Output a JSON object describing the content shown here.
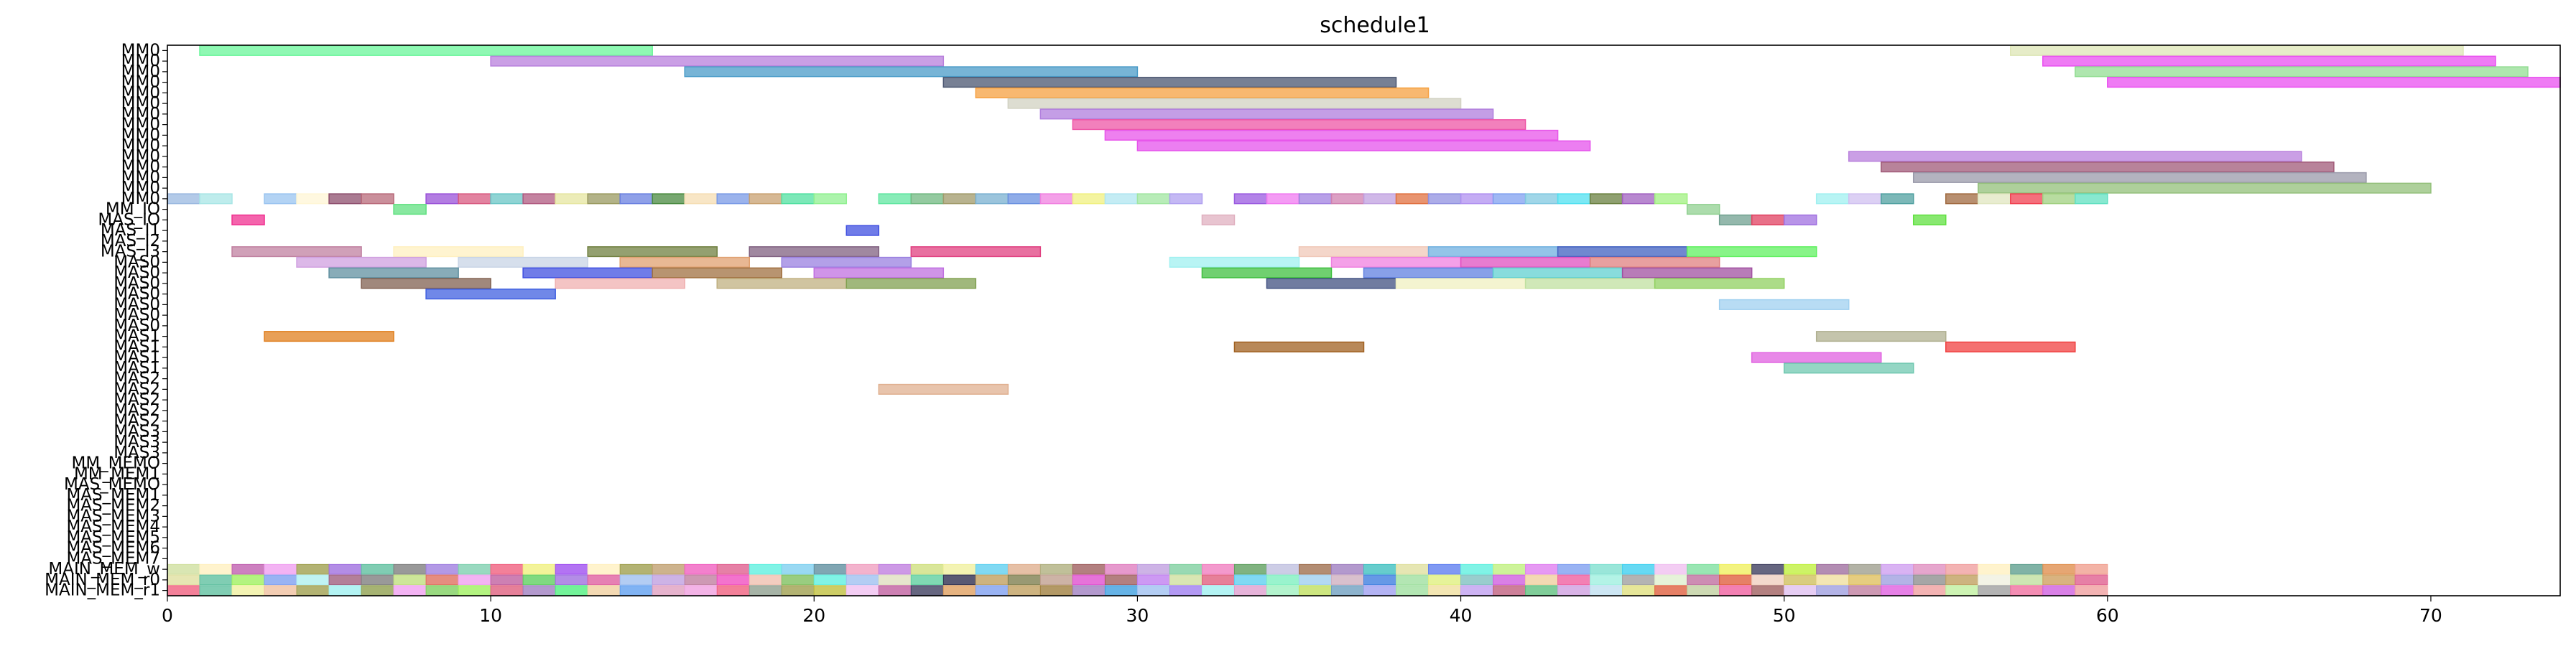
{
  "chart_data": {
    "type": "gantt",
    "title": "schedule1",
    "xlabel": "",
    "ylabel": "",
    "xlim": [
      0,
      74
    ],
    "x_ticks": [
      0,
      10,
      20,
      30,
      40,
      50,
      60,
      70
    ],
    "grid": false,
    "rows": [
      "MM0",
      "MM0",
      "MM0",
      "MM0",
      "MM0",
      "MM0",
      "MM0",
      "MM0",
      "MM0",
      "MM0",
      "MM0",
      "MM0",
      "MM0",
      "MM0",
      "MM0",
      "MM_IO",
      "MAS_IO",
      "MAS_I1",
      "MAS_I2",
      "MAS_I3",
      "MAS0",
      "MAS0",
      "MAS0",
      "MAS0",
      "MAS0",
      "MAS0",
      "MAS0",
      "MAS1",
      "MAS1",
      "MAS1",
      "MAS1",
      "MAS2",
      "MAS2",
      "MAS2",
      "MAS2",
      "MAS2",
      "MAS3",
      "MAS3",
      "MAS3",
      "MM_MEMO",
      "MM_MEM1",
      "MAS_MEMO",
      "MAS_MEM1",
      "MAS_MEM2",
      "MAS_MEM3",
      "MAS_MEM4",
      "MAS_MEM5",
      "MAS_MEM6",
      "MAS_MEM7",
      "MAIN_MEM_w",
      "MAIN_MEM_r0",
      "MAIN_MEM_r1"
    ],
    "bars": [
      {
        "row": 0,
        "start": 1,
        "end": 15,
        "color": "#6af59a"
      },
      {
        "row": 0,
        "start": 57,
        "end": 71,
        "color": "#dde6b5"
      },
      {
        "row": 1,
        "start": 10,
        "end": 24,
        "color": "#b87fdc"
      },
      {
        "row": 1,
        "start": 58,
        "end": 72,
        "color": "#e94ff0"
      },
      {
        "row": 2,
        "start": 16,
        "end": 30,
        "color": "#4a9bc8"
      },
      {
        "row": 2,
        "start": 59,
        "end": 73,
        "color": "#93dd93"
      },
      {
        "row": 3,
        "start": 24,
        "end": 38,
        "color": "#4a5570"
      },
      {
        "row": 3,
        "start": 60,
        "end": 74,
        "color": "#e94ff0"
      },
      {
        "row": 4,
        "start": 25,
        "end": 39,
        "color": "#f5a040"
      },
      {
        "row": 5,
        "start": 26,
        "end": 40,
        "color": "#d2d2c2"
      },
      {
        "row": 6,
        "start": 27,
        "end": 41,
        "color": "#b07edd"
      },
      {
        "row": 7,
        "start": 28,
        "end": 42,
        "color": "#ee55a6"
      },
      {
        "row": 8,
        "start": 29,
        "end": 43,
        "color": "#e856ea"
      },
      {
        "row": 9,
        "start": 30,
        "end": 44,
        "color": "#e653ec"
      },
      {
        "row": 10,
        "start": 52,
        "end": 66,
        "color": "#b87fdc"
      },
      {
        "row": 11,
        "start": 53,
        "end": 67,
        "color": "#a05a78"
      },
      {
        "row": 12,
        "start": 54,
        "end": 68,
        "color": "#9a9aaa"
      },
      {
        "row": 13,
        "start": 56,
        "end": 70,
        "color": "#93c07a"
      },
      {
        "row": 14,
        "start": 0,
        "end": 1,
        "color": "#9ab8e0"
      },
      {
        "row": 14,
        "start": 1,
        "end": 2,
        "color": "#a8e6e6"
      },
      {
        "row": 14,
        "start": 3,
        "end": 4,
        "color": "#9ac4f0"
      },
      {
        "row": 14,
        "start": 4,
        "end": 5,
        "color": "#fff6d5"
      },
      {
        "row": 14,
        "start": 5,
        "end": 6,
        "color": "#8e4f6e"
      },
      {
        "row": 14,
        "start": 6,
        "end": 7,
        "color": "#b86a7a"
      },
      {
        "row": 14,
        "start": 8,
        "end": 9,
        "color": "#9a52d8"
      },
      {
        "row": 14,
        "start": 9,
        "end": 10,
        "color": "#d85a80"
      },
      {
        "row": 14,
        "start": 10,
        "end": 11,
        "color": "#6ac6c6"
      },
      {
        "row": 14,
        "start": 11,
        "end": 12,
        "color": "#b05a80"
      },
      {
        "row": 14,
        "start": 12,
        "end": 13,
        "color": "#e6e6a0"
      },
      {
        "row": 14,
        "start": 13,
        "end": 14,
        "color": "#9a9a60"
      },
      {
        "row": 14,
        "start": 14,
        "end": 15,
        "color": "#6a80e0"
      },
      {
        "row": 14,
        "start": 15,
        "end": 16,
        "color": "#4a8a40"
      },
      {
        "row": 14,
        "start": 16,
        "end": 17,
        "color": "#f5deb3"
      },
      {
        "row": 14,
        "start": 17,
        "end": 18,
        "color": "#7a9ae6"
      },
      {
        "row": 14,
        "start": 18,
        "end": 19,
        "color": "#c8a070"
      },
      {
        "row": 14,
        "start": 19,
        "end": 20,
        "color": "#50e0a0"
      },
      {
        "row": 14,
        "start": 20,
        "end": 21,
        "color": "#90f090"
      },
      {
        "row": 14,
        "start": 22,
        "end": 23,
        "color": "#60e6a0"
      },
      {
        "row": 14,
        "start": 23,
        "end": 24,
        "color": "#70b880"
      },
      {
        "row": 14,
        "start": 24,
        "end": 25,
        "color": "#a09a6a"
      },
      {
        "row": 14,
        "start": 25,
        "end": 26,
        "color": "#7ab0d0"
      },
      {
        "row": 14,
        "start": 26,
        "end": 27,
        "color": "#6a90e0"
      },
      {
        "row": 14,
        "start": 27,
        "end": 28,
        "color": "#f080e0"
      },
      {
        "row": 14,
        "start": 28,
        "end": 29,
        "color": "#f0f080"
      },
      {
        "row": 14,
        "start": 29,
        "end": 30,
        "color": "#b0e6f0"
      },
      {
        "row": 14,
        "start": 30,
        "end": 31,
        "color": "#a0e6a0"
      },
      {
        "row": 14,
        "start": 31,
        "end": 32,
        "color": "#b0a0f0"
      },
      {
        "row": 14,
        "start": 33,
        "end": 34,
        "color": "#9a5ae0"
      },
      {
        "row": 14,
        "start": 34,
        "end": 35,
        "color": "#f07af0"
      },
      {
        "row": 14,
        "start": 35,
        "end": 36,
        "color": "#a080e0"
      },
      {
        "row": 14,
        "start": 36,
        "end": 37,
        "color": "#d080b0"
      },
      {
        "row": 14,
        "start": 37,
        "end": 38,
        "color": "#c0a0e0"
      },
      {
        "row": 14,
        "start": 38,
        "end": 39,
        "color": "#e07040"
      },
      {
        "row": 14,
        "start": 39,
        "end": 40,
        "color": "#9090e0"
      },
      {
        "row": 14,
        "start": 40,
        "end": 41,
        "color": "#b090f0"
      },
      {
        "row": 14,
        "start": 41,
        "end": 42,
        "color": "#80a0f0"
      },
      {
        "row": 14,
        "start": 42,
        "end": 43,
        "color": "#80c8e0"
      },
      {
        "row": 14,
        "start": 43,
        "end": 44,
        "color": "#50e0f0"
      },
      {
        "row": 14,
        "start": 44,
        "end": 45,
        "color": "#6a8040"
      },
      {
        "row": 14,
        "start": 45,
        "end": 46,
        "color": "#a060c0"
      },
      {
        "row": 14,
        "start": 46,
        "end": 47,
        "color": "#a0f080"
      },
      {
        "row": 14,
        "start": 51,
        "end": 52,
        "color": "#a0f0f0"
      },
      {
        "row": 14,
        "start": 52,
        "end": 53,
        "color": "#d0c0f0"
      },
      {
        "row": 14,
        "start": 53,
        "end": 54,
        "color": "#50a0a0"
      },
      {
        "row": 14,
        "start": 55,
        "end": 56,
        "color": "#a06a40"
      },
      {
        "row": 14,
        "start": 56,
        "end": 57,
        "color": "#e0e6c0"
      },
      {
        "row": 14,
        "start": 57,
        "end": 58,
        "color": "#f04050"
      },
      {
        "row": 14,
        "start": 58,
        "end": 59,
        "color": "#a0d080"
      },
      {
        "row": 14,
        "start": 59,
        "end": 60,
        "color": "#60e0c0"
      },
      {
        "row": 15,
        "start": 7,
        "end": 8,
        "color": "#60e080"
      },
      {
        "row": 15,
        "start": 47,
        "end": 48,
        "color": "#90d090"
      },
      {
        "row": 16,
        "start": 2,
        "end": 3,
        "color": "#f03090"
      },
      {
        "row": 16,
        "start": 32,
        "end": 33,
        "color": "#e0b0c0"
      },
      {
        "row": 16,
        "start": 48,
        "end": 49,
        "color": "#70a090"
      },
      {
        "row": 16,
        "start": 49,
        "end": 50,
        "color": "#e04060"
      },
      {
        "row": 16,
        "start": 50,
        "end": 51,
        "color": "#a070e0"
      },
      {
        "row": 16,
        "start": 54,
        "end": 55,
        "color": "#60e040"
      },
      {
        "row": 17,
        "start": 21,
        "end": 22,
        "color": "#4050e0"
      },
      {
        "row": 19,
        "start": 2,
        "end": 6,
        "color": "#c080a0"
      },
      {
        "row": 19,
        "start": 7,
        "end": 11,
        "color": "#fff0c0"
      },
      {
        "row": 19,
        "start": 13,
        "end": 17,
        "color": "#708040"
      },
      {
        "row": 19,
        "start": 18,
        "end": 22,
        "color": "#806080"
      },
      {
        "row": 19,
        "start": 23,
        "end": 27,
        "color": "#e04080"
      },
      {
        "row": 19,
        "start": 35,
        "end": 39,
        "color": "#f0c8b8"
      },
      {
        "row": 19,
        "start": 39,
        "end": 43,
        "color": "#70b0e0"
      },
      {
        "row": 19,
        "start": 43,
        "end": 47,
        "color": "#4060c0"
      },
      {
        "row": 19,
        "start": 47,
        "end": 51,
        "color": "#60f060"
      },
      {
        "row": 20,
        "start": 4,
        "end": 8,
        "color": "#d0a0e0"
      },
      {
        "row": 20,
        "start": 9,
        "end": 13,
        "color": "#c8d4e6"
      },
      {
        "row": 20,
        "start": 14,
        "end": 18,
        "color": "#e0a070"
      },
      {
        "row": 20,
        "start": 19,
        "end": 23,
        "color": "#9a80e0"
      },
      {
        "row": 20,
        "start": 31,
        "end": 35,
        "color": "#a0f0f0"
      },
      {
        "row": 20,
        "start": 36,
        "end": 40,
        "color": "#f080e0"
      },
      {
        "row": 20,
        "start": 40,
        "end": 44,
        "color": "#e050c0"
      },
      {
        "row": 20,
        "start": 44,
        "end": 48,
        "color": "#e08080"
      },
      {
        "row": 21,
        "start": 5,
        "end": 9,
        "color": "#6090a0"
      },
      {
        "row": 21,
        "start": 11,
        "end": 15,
        "color": "#4050e0"
      },
      {
        "row": 21,
        "start": 15,
        "end": 19,
        "color": "#a07040"
      },
      {
        "row": 21,
        "start": 20,
        "end": 24,
        "color": "#c070e0"
      },
      {
        "row": 21,
        "start": 32,
        "end": 36,
        "color": "#40c040"
      },
      {
        "row": 21,
        "start": 37,
        "end": 41,
        "color": "#6080e0"
      },
      {
        "row": 21,
        "start": 41,
        "end": 45,
        "color": "#60d0d0"
      },
      {
        "row": 21,
        "start": 45,
        "end": 49,
        "color": "#a050a0"
      },
      {
        "row": 22,
        "start": 6,
        "end": 10,
        "color": "#806050"
      },
      {
        "row": 22,
        "start": 12,
        "end": 16,
        "color": "#f0b0b0"
      },
      {
        "row": 22,
        "start": 17,
        "end": 21,
        "color": "#c0b080"
      },
      {
        "row": 22,
        "start": 21,
        "end": 25,
        "color": "#80a050"
      },
      {
        "row": 22,
        "start": 34,
        "end": 38,
        "color": "#405080"
      },
      {
        "row": 22,
        "start": 38,
        "end": 42,
        "color": "#f0f0c0"
      },
      {
        "row": 22,
        "start": 42,
        "end": 46,
        "color": "#c0e0a0"
      },
      {
        "row": 22,
        "start": 46,
        "end": 50,
        "color": "#90d060"
      },
      {
        "row": 23,
        "start": 8,
        "end": 12,
        "color": "#4060e0"
      },
      {
        "row": 24,
        "start": 48,
        "end": 52,
        "color": "#a0d0f0"
      },
      {
        "row": 27,
        "start": 3,
        "end": 7,
        "color": "#e08020"
      },
      {
        "row": 27,
        "start": 51,
        "end": 55,
        "color": "#b0b090"
      },
      {
        "row": 28,
        "start": 33,
        "end": 37,
        "color": "#a06020"
      },
      {
        "row": 28,
        "start": 55,
        "end": 59,
        "color": "#f04040"
      },
      {
        "row": 29,
        "start": 49,
        "end": 53,
        "color": "#e060e0"
      },
      {
        "row": 30,
        "start": 50,
        "end": 54,
        "color": "#70c8b0"
      },
      {
        "row": 32,
        "start": 22,
        "end": 26,
        "color": "#e0b090"
      }
    ],
    "mem_rows": [
      {
        "row": 49,
        "colors": [
          "#d0e0a0",
          "#fff0c0",
          "#c060b0",
          "#f0a0f0",
          "#a0a050",
          "#a070e0",
          "#60c0a0",
          "#808080",
          "#a080e0",
          "#80d0b0",
          "#f06080",
          "#f0f080",
          "#a050f0",
          "#fff0c0",
          "#a0a050",
          "#c0a070",
          "#f060c0",
          "#e06090",
          "#60f0e0",
          "#80d0f0",
          "#6090a0",
          "#f0a0c0",
          "#c080e0",
          "#d0e080",
          "#f0f0a0",
          "#60d0f0",
          "#e0b090",
          "#b0b080",
          "#a06060",
          "#e080c0",
          "#c0a0e0",
          "#80d0a0",
          "#f080c0",
          "#60a060",
          "#c0c0e0",
          "#a07050",
          "#a080c0",
          "#40c0c0",
          "#e0e0a0",
          "#6080f0",
          "#60f0e0",
          "#c0f080",
          "#e080f0",
          "#80a0f0",
          "#80e0d0",
          "#40d0f0",
          "#f0c0f0",
          "#80e0a0",
          "#f0f060",
          "#404060",
          "#c0f040",
          "#a070a0",
          "#a0a090",
          "#d0a0f0",
          "#e090c0",
          "#f0a0a0",
          "#fff0c0",
          "#60a090",
          "#e09050",
          "#f0a090"
        ]
      },
      {
        "row": 50,
        "colors": [
          "#e0e0a0",
          "#60c0a0",
          "#a0f060",
          "#80a0f0",
          "#b0f0f0",
          "#a06080",
          "#808080",
          "#c0e080",
          "#e07060",
          "#f0a0f0",
          "#c060a0",
          "#60d060",
          "#a070e0",
          "#e060a0",
          "#a0c0f0",
          "#c0a0e0",
          "#c080a0",
          "#f050c0",
          "#f0c0b0",
          "#80c060",
          "#60f0e0",
          "#a0c0f0",
          "#e0e0c0",
          "#60d0a0",
          "#303050",
          "#c0a060",
          "#808050",
          "#c0a090",
          "#e050d0",
          "#a06060",
          "#c080f0",
          "#d0e0a0",
          "#e06080",
          "#60d0f0",
          "#80f0c0",
          "#a0d0f0",
          "#d0b0c0",
          "#4080e0",
          "#a0e0a0",
          "#e0f080",
          "#80c0c0",
          "#d060e0",
          "#f0d0a0",
          "#f060a0",
          "#a0f0e0",
          "#a0a0a0",
          "#e0f0d0",
          "#c070a0",
          "#e06040",
          "#f0d0c0",
          "#d0c060",
          "#f0e0a0",
          "#e0c060",
          "#a0a0e0",
          "#909090",
          "#c0a060",
          "#f0f0e0",
          "#c0e0a0",
          "#d0a060",
          "#e06090"
        ]
      },
      {
        "row": 51,
        "colors": [
          "#f06080",
          "#60c0a0",
          "#f0f0a0",
          "#f0c0a0",
          "#a0a050",
          "#a0f0f0",
          "#90a050",
          "#f0a0f0",
          "#80d060",
          "#a0f060",
          "#e06080",
          "#a080c0",
          "#50f080",
          "#f0d0a0",
          "#60a0f0",
          "#e0a0c0",
          "#f0a0e0",
          "#f06080",
          "#90a090",
          "#a0a050",
          "#c0c040",
          "#f0c0f0",
          "#c060a0",
          "#404060",
          "#e0a060",
          "#80a0f0",
          "#c0a060",
          "#a08040",
          "#a080c0",
          "#40a0e0",
          "#a0c0f0",
          "#a080f0",
          "#a0f0f0",
          "#e0a0d0",
          "#a0f0c0",
          "#c0e060",
          "#70a0c0",
          "#a0a0f0",
          "#a0e0a0",
          "#f0e0a0",
          "#c0a0f0",
          "#c06080",
          "#60c080",
          "#d0a0e0",
          "#c0e0f0",
          "#e0e080",
          "#e06040",
          "#c0d0a0",
          "#f060a0",
          "#a06060",
          "#e0c0f0",
          "#a0a0e0",
          "#c080a0",
          "#e060e0",
          "#f0a0a0",
          "#c0f0a0",
          "#a0a0a0",
          "#f070a0",
          "#d060e0",
          "#f0a0a0"
        ]
      }
    ]
  }
}
